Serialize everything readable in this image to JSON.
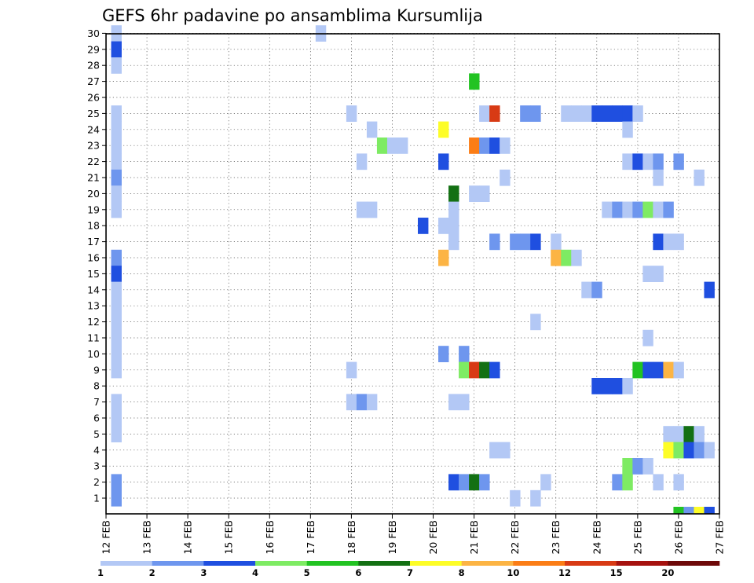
{
  "chart_data": {
    "type": "heatmap",
    "title": "GEFS 6hr padavine po ansamblima Kursumlija",
    "xlabel": "",
    "ylabel": "",
    "x_tick_labels": [
      "12 FEB",
      "13 FEB",
      "14 FEB",
      "15 FEB",
      "16 FEB",
      "17 FEB",
      "18 FEB",
      "19 FEB",
      "20 FEB",
      "21 FEB",
      "22 FEB",
      "23 FEB",
      "24 FEB",
      "25 FEB",
      "26 FEB",
      "27 FEB"
    ],
    "y_tick_labels": [
      "1",
      "2",
      "3",
      "4",
      "5",
      "6",
      "7",
      "8",
      "9",
      "10",
      "11",
      "12",
      "13",
      "14",
      "15",
      "16",
      "17",
      "18",
      "19",
      "20",
      "21",
      "22",
      "23",
      "24",
      "25",
      "26",
      "27",
      "28",
      "29",
      "30"
    ],
    "xlim": [
      0,
      60
    ],
    "ylim": [
      0,
      30
    ],
    "x_units": "6-hour steps from 12 FEB 00Z",
    "grid": true,
    "legend": {
      "placement": "bottom",
      "labels": [
        "1",
        "2",
        "3",
        "4",
        "5",
        "6",
        "7",
        "8",
        "10",
        "12",
        "15",
        "20"
      ],
      "colors": [
        "#b3c8f5",
        "#6e96ee",
        "#1f4fe0",
        "#7eeb63",
        "#22c322",
        "#137013",
        "#fdfd27",
        "#fcb444",
        "#fb7d16",
        "#d83a14",
        "#a6120f",
        "#6e0909"
      ]
    },
    "level_colors": {
      "1": "#b3c8f5",
      "2": "#6e96ee",
      "3": "#1f4fe0",
      "4": "#7eeb63",
      "5": "#22c322",
      "6": "#137013",
      "7": "#fdfd27",
      "8": "#fcb444",
      "10": "#fb7d16",
      "12": "#d83a14",
      "15": "#a6120f",
      "20": "#6e0909"
    },
    "cells": [
      [
        1,
        30,
        1
      ],
      [
        1,
        29,
        3
      ],
      [
        1,
        28,
        1
      ],
      [
        1,
        25,
        1
      ],
      [
        1,
        24,
        1
      ],
      [
        1,
        23,
        1
      ],
      [
        1,
        22,
        1
      ],
      [
        1,
        21,
        2
      ],
      [
        1,
        20,
        1
      ],
      [
        1,
        19,
        1
      ],
      [
        1,
        16,
        2
      ],
      [
        1,
        15,
        3
      ],
      [
        1,
        14,
        1
      ],
      [
        1,
        13,
        1
      ],
      [
        1,
        12,
        1
      ],
      [
        1,
        11,
        1
      ],
      [
        1,
        10,
        1
      ],
      [
        1,
        9,
        1
      ],
      [
        1,
        7,
        1
      ],
      [
        1,
        6,
        1
      ],
      [
        1,
        5,
        1
      ],
      [
        1,
        2,
        2
      ],
      [
        1,
        1,
        2
      ],
      [
        21,
        30,
        1
      ],
      [
        24,
        25,
        1
      ],
      [
        24,
        9,
        1
      ],
      [
        24,
        7,
        1
      ],
      [
        25,
        7,
        2
      ],
      [
        26,
        7,
        1
      ],
      [
        25,
        22,
        1
      ],
      [
        25,
        19,
        1
      ],
      [
        26,
        19,
        1
      ],
      [
        26,
        24,
        1
      ],
      [
        27,
        23,
        4
      ],
      [
        28,
        23,
        1
      ],
      [
        29,
        23,
        1
      ],
      [
        31,
        18,
        3
      ],
      [
        33,
        24,
        7
      ],
      [
        33,
        22,
        3
      ],
      [
        33,
        18,
        1
      ],
      [
        33,
        16,
        8
      ],
      [
        33,
        10,
        2
      ],
      [
        34,
        20,
        6
      ],
      [
        34,
        19,
        1
      ],
      [
        34,
        18,
        1
      ],
      [
        34,
        17,
        1
      ],
      [
        34,
        7,
        1
      ],
      [
        34,
        2,
        3
      ],
      [
        35,
        10,
        2
      ],
      [
        35,
        9,
        4
      ],
      [
        35,
        7,
        1
      ],
      [
        35,
        2,
        2
      ],
      [
        36,
        27,
        5
      ],
      [
        36,
        23,
        10
      ],
      [
        36,
        20,
        1
      ],
      [
        36,
        9,
        12
      ],
      [
        36,
        2,
        6
      ],
      [
        37,
        25,
        1
      ],
      [
        37,
        23,
        2
      ],
      [
        37,
        20,
        1
      ],
      [
        37,
        9,
        6
      ],
      [
        37,
        2,
        2
      ],
      [
        38,
        25,
        12
      ],
      [
        38,
        23,
        3
      ],
      [
        38,
        17,
        2
      ],
      [
        38,
        9,
        3
      ],
      [
        38,
        4,
        1
      ],
      [
        39,
        23,
        1
      ],
      [
        39,
        21,
        1
      ],
      [
        39,
        4,
        1
      ],
      [
        40,
        17,
        2
      ],
      [
        40,
        1,
        1
      ],
      [
        41,
        25,
        2
      ],
      [
        41,
        17,
        2
      ],
      [
        42,
        25,
        2
      ],
      [
        42,
        17,
        3
      ],
      [
        42,
        12,
        1
      ],
      [
        42,
        1,
        1
      ],
      [
        43,
        2,
        1
      ],
      [
        44,
        17,
        1
      ],
      [
        44,
        16,
        8
      ],
      [
        45,
        16,
        4
      ],
      [
        46,
        16,
        1
      ],
      [
        45,
        25,
        1
      ],
      [
        46,
        25,
        1
      ],
      [
        47,
        25,
        1
      ],
      [
        47,
        14,
        1
      ],
      [
        48,
        14,
        2
      ],
      [
        48,
        25,
        3
      ],
      [
        49,
        25,
        3
      ],
      [
        50,
        25,
        3
      ],
      [
        51,
        25,
        3
      ],
      [
        48,
        8,
        3
      ],
      [
        49,
        8,
        3
      ],
      [
        50,
        8,
        3
      ],
      [
        51,
        8,
        1
      ],
      [
        49,
        19,
        1
      ],
      [
        50,
        19,
        2
      ],
      [
        51,
        19,
        1
      ],
      [
        52,
        19,
        2
      ],
      [
        53,
        19,
        4
      ],
      [
        54,
        19,
        1
      ],
      [
        55,
        19,
        2
      ],
      [
        50,
        2,
        2
      ],
      [
        51,
        24,
        1
      ],
      [
        51,
        22,
        1
      ],
      [
        52,
        22,
        3
      ],
      [
        53,
        22,
        1
      ],
      [
        54,
        22,
        2
      ],
      [
        56,
        22,
        2
      ],
      [
        51,
        3,
        4
      ],
      [
        52,
        3,
        2
      ],
      [
        51,
        2,
        4
      ],
      [
        52,
        25,
        1
      ],
      [
        52,
        9,
        5
      ],
      [
        53,
        9,
        3
      ],
      [
        54,
        9,
        3
      ],
      [
        55,
        9,
        8
      ],
      [
        56,
        9,
        1
      ],
      [
        53,
        15,
        1
      ],
      [
        54,
        15,
        1
      ],
      [
        53,
        11,
        1
      ],
      [
        54,
        21,
        1
      ],
      [
        54,
        17,
        3
      ],
      [
        55,
        17,
        1
      ],
      [
        56,
        17,
        1
      ],
      [
        53,
        3,
        1
      ],
      [
        54,
        2,
        1
      ],
      [
        56,
        2,
        1
      ],
      [
        55,
        5,
        1
      ],
      [
        56,
        5,
        1
      ],
      [
        57,
        5,
        6
      ],
      [
        58,
        5,
        1
      ],
      [
        55,
        4,
        7
      ],
      [
        56,
        4,
        4
      ],
      [
        57,
        4,
        3
      ],
      [
        58,
        4,
        2
      ],
      [
        59,
        4,
        1
      ],
      [
        58,
        21,
        1
      ],
      [
        59,
        14,
        3
      ]
    ],
    "bottom_strip": [
      [
        56,
        5
      ],
      [
        57,
        2
      ],
      [
        58,
        7
      ],
      [
        59,
        3
      ]
    ]
  }
}
